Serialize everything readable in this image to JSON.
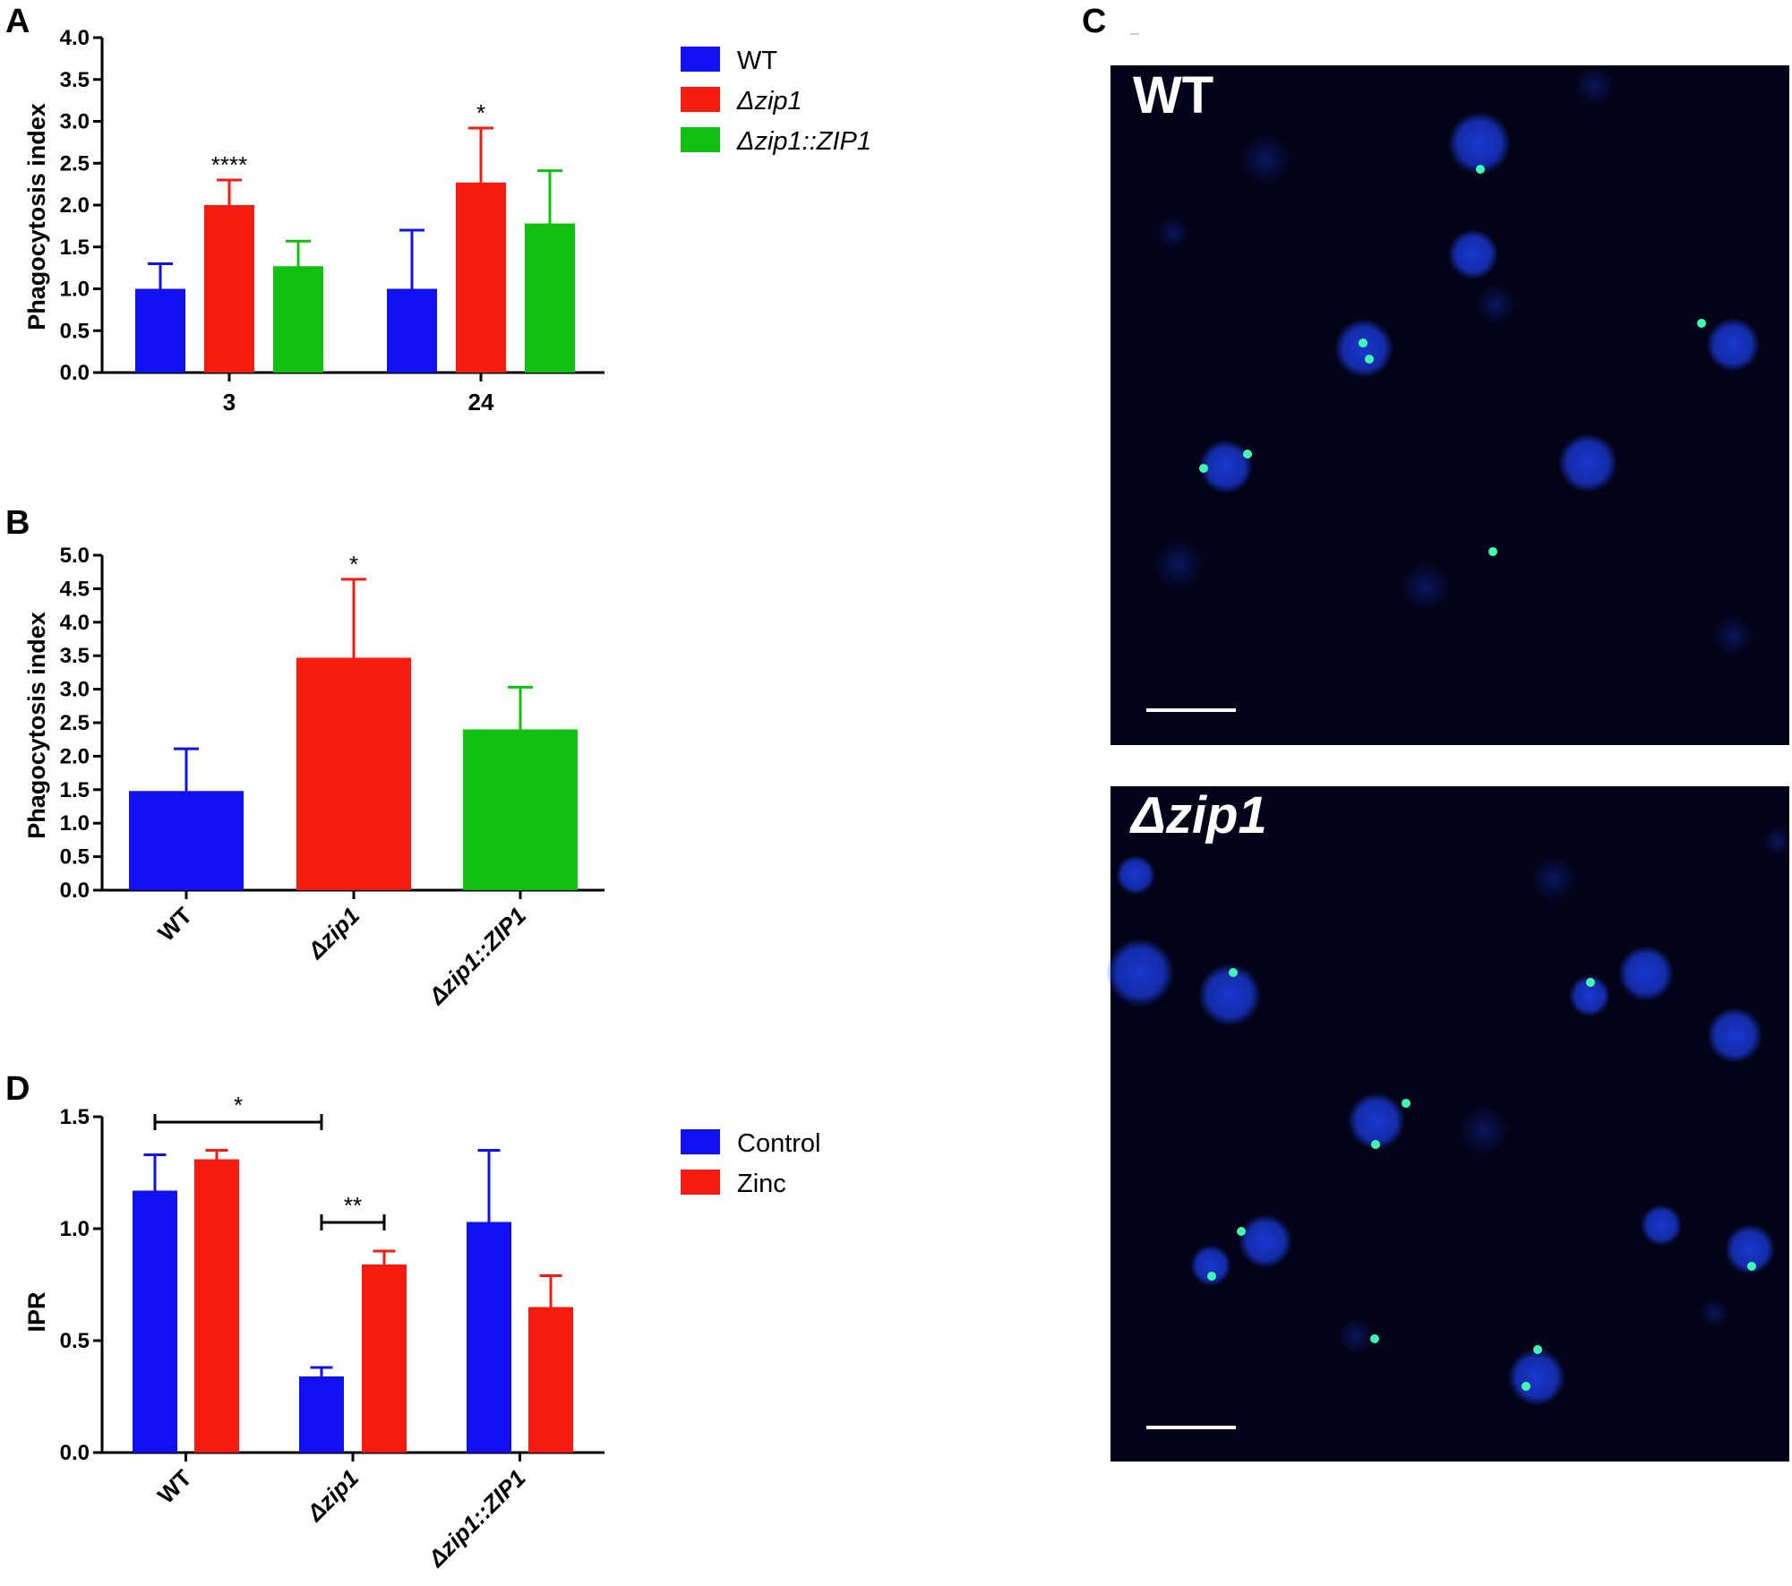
{
  "colors": {
    "blue": "#1010f0",
    "red": "#f51b0f",
    "green": "#10c010",
    "micro_bg": "#020318",
    "cell": "#1a3ad8",
    "dot": "#40ffb0"
  },
  "legend_strains": [
    "WT",
    "Δzip1",
    "Δzip1::ZIP1"
  ],
  "legend_treatment": [
    "Control",
    "Zinc"
  ],
  "micro": {
    "letter": "C",
    "top_label": "WT",
    "bottom_label": "Δzip1"
  },
  "chart_data": [
    {
      "panel": "A",
      "type": "bar",
      "ylabel": "Phagocytosis index",
      "xlabel": "",
      "ylim": [
        0,
        4.0
      ],
      "yticks": [
        "0.0",
        "0.5",
        "1.0",
        "1.5",
        "2.0",
        "2.5",
        "3.0",
        "3.5",
        "4.0"
      ],
      "categories": [
        "3",
        "24"
      ],
      "series": [
        {
          "name": "WT",
          "values": [
            1.0,
            1.0
          ],
          "err": [
            0.3,
            0.7
          ]
        },
        {
          "name": "Δzip1",
          "values": [
            2.0,
            2.27
          ],
          "err": [
            0.3,
            0.65
          ]
        },
        {
          "name": "Δzip1::ZIP1",
          "values": [
            1.27,
            1.78
          ],
          "err": [
            0.3,
            0.63
          ]
        }
      ],
      "annotations": [
        {
          "text": "****",
          "category": 0,
          "series": 1
        },
        {
          "text": "*",
          "category": 1,
          "series": 1
        }
      ]
    },
    {
      "panel": "B",
      "type": "bar",
      "ylabel": "Phagocytosis index",
      "xlabel": "",
      "ylim": [
        0,
        5.0
      ],
      "yticks": [
        "0.0",
        "0.5",
        "1.0",
        "1.5",
        "2.0",
        "2.5",
        "3.0",
        "3.5",
        "4.0",
        "4.5",
        "5.0"
      ],
      "categories": [
        "WT",
        "Δzip1",
        "Δzip1::ZIP1"
      ],
      "values": [
        1.48,
        3.47,
        2.4
      ],
      "err": [
        0.63,
        1.17,
        0.63
      ],
      "annotations": [
        {
          "text": "*",
          "category": 1
        }
      ]
    },
    {
      "panel": "D",
      "type": "bar",
      "ylabel": "IPR",
      "xlabel": "",
      "ylim": [
        0,
        1.5
      ],
      "yticks": [
        "0.0",
        "0.5",
        "1.0",
        "1.5"
      ],
      "categories": [
        "WT",
        "Δzip1",
        "Δzip1::ZIP1"
      ],
      "series": [
        {
          "name": "Control",
          "values": [
            1.17,
            0.34,
            1.03
          ],
          "err": [
            0.16,
            0.04,
            0.32
          ]
        },
        {
          "name": "Zinc",
          "values": [
            1.31,
            0.84,
            0.65
          ],
          "err": [
            0.04,
            0.06,
            0.14
          ]
        }
      ],
      "annotations": [
        {
          "text": "*",
          "from": [
            0,
            0
          ],
          "to": [
            1,
            0
          ]
        },
        {
          "text": "**",
          "from": [
            1,
            0
          ],
          "to": [
            1,
            1
          ]
        }
      ]
    }
  ]
}
